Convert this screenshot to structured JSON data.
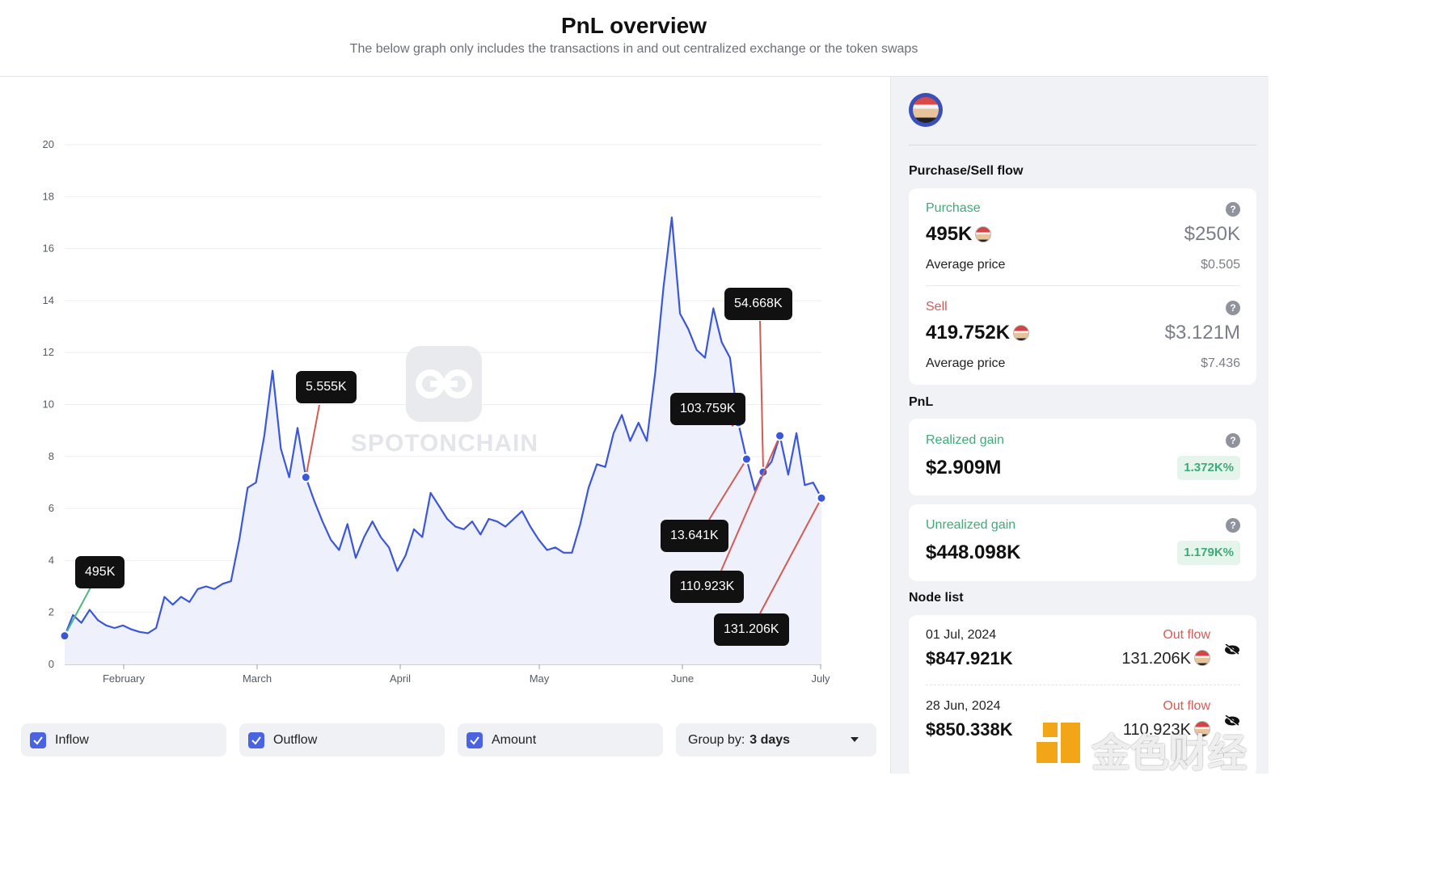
{
  "header": {
    "title": "PnL overview",
    "subtitle": "The below graph only includes the transactions in and out centralized exchange or the token swaps"
  },
  "watermark": {
    "text": "SPOTONCHAIN"
  },
  "chart_data": {
    "type": "line",
    "x_ticks": [
      "February",
      "March",
      "April",
      "May",
      "June",
      "July"
    ],
    "y_ticks": [
      "0",
      "2",
      "4",
      "6",
      "8",
      "10",
      "12",
      "14",
      "16",
      "18",
      "20"
    ],
    "ylim": [
      0,
      20
    ],
    "grid": true,
    "series": [
      {
        "values": [
          1.1,
          1.9,
          1.6,
          2.1,
          1.7,
          1.5,
          1.4,
          1.5,
          1.35,
          1.25,
          1.2,
          1.4,
          2.6,
          2.3,
          2.6,
          2.4,
          2.9,
          3.0,
          2.9,
          3.1,
          3.2,
          4.8,
          6.8,
          7.0,
          8.8,
          11.3,
          8.3,
          7.2,
          9.1,
          7.2,
          6.3,
          5.5,
          4.8,
          4.4,
          5.4,
          4.1,
          4.9,
          5.5,
          4.9,
          4.5,
          3.6,
          4.2,
          5.2,
          4.9,
          6.6,
          6.1,
          5.6,
          5.3,
          5.2,
          5.5,
          5.0,
          5.6,
          5.5,
          5.3,
          5.6,
          5.9,
          5.3,
          4.8,
          4.4,
          4.5,
          4.3,
          4.3,
          5.4,
          6.8,
          7.7,
          7.6,
          8.9,
          9.6,
          8.6,
          9.3,
          8.6,
          11.2,
          14.5,
          17.2,
          13.5,
          12.9,
          12.1,
          11.8,
          13.7,
          12.4,
          11.8,
          9.3,
          7.9,
          6.7,
          7.4,
          7.8,
          8.8,
          7.3,
          8.9,
          6.9,
          7.0,
          6.4
        ]
      }
    ],
    "annotations": [
      {
        "label": "495K",
        "x_index": 0
      },
      {
        "label": "5.555K",
        "x_index": 29
      },
      {
        "label": "54.668K",
        "x_index": 84
      },
      {
        "label": "103.759K",
        "x_index": 81
      },
      {
        "label": "13.641K",
        "x_index": 82
      },
      {
        "label": "110.923K",
        "x_index": 86
      },
      {
        "label": "131.206K",
        "x_index": 91
      }
    ],
    "colors": {
      "line": "#3b57d9",
      "fill": "#eef0fb",
      "buy_leader": "#4cba7d",
      "sell_leader": "#d35b55"
    }
  },
  "controls": {
    "inflow": "Inflow",
    "outflow": "Outflow",
    "amount": "Amount",
    "group_by_label": "Group by:",
    "group_by_value": "3 days"
  },
  "sidebar": {
    "purchase_sell_title": "Purchase/Sell flow",
    "purchase": {
      "label": "Purchase",
      "amount": "495K",
      "usd": "$250K",
      "avg_label": "Average price",
      "avg_value": "$0.505"
    },
    "sell": {
      "label": "Sell",
      "amount": "419.752K",
      "usd": "$3.121M",
      "avg_label": "Average price",
      "avg_value": "$7.436"
    },
    "pnl_title": "PnL",
    "realized": {
      "label": "Realized gain",
      "value": "$2.909M",
      "pct": "1.372K%"
    },
    "unrealized": {
      "label": "Unrealized gain",
      "value": "$448.098K",
      "pct": "1.179K%"
    },
    "node_list_title": "Node list",
    "nodes": [
      {
        "date": "01 Jul, 2024",
        "flow": "Out flow",
        "usd": "$847.921K",
        "amount": "131.206K"
      },
      {
        "date": "28 Jun, 2024",
        "flow": "Out flow",
        "usd": "$850.338K",
        "amount": "110.923K"
      }
    ],
    "help_symbol": "?"
  },
  "corner_logo": {
    "text": "金色财经"
  }
}
